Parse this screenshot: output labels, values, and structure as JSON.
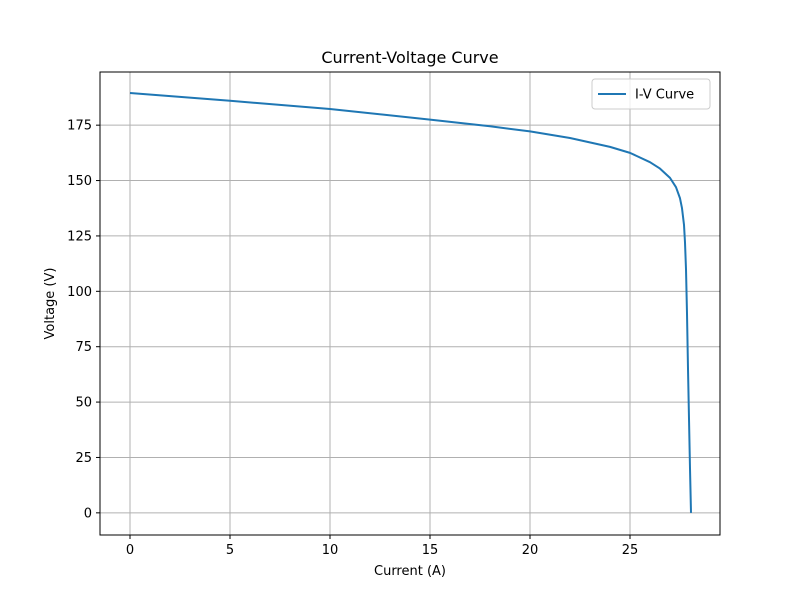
{
  "chart_data": {
    "type": "line",
    "title": "Current-Voltage Curve",
    "xlabel": "Current (A)",
    "ylabel": "Voltage (V)",
    "xlim": [
      -1.5,
      29.5
    ],
    "ylim": [
      -10,
      199
    ],
    "xticks": [
      0,
      5,
      10,
      15,
      20,
      25
    ],
    "yticks": [
      0,
      25,
      50,
      75,
      100,
      125,
      150,
      175
    ],
    "grid": true,
    "legend_position": "upper-right",
    "series": [
      {
        "name": "I-V Curve",
        "color": "#1f77b4",
        "x": [
          0,
          5,
          10,
          15,
          18,
          20,
          22,
          24,
          25,
          26,
          26.5,
          27,
          27.3,
          27.5,
          27.6,
          27.7,
          27.75,
          27.8,
          27.85,
          27.9,
          28.0,
          28.05
        ],
        "y": [
          189.5,
          186.0,
          182.3,
          177.5,
          174.5,
          172.2,
          169.2,
          165.2,
          162.5,
          158.3,
          155.4,
          151.2,
          147.0,
          142.0,
          137.5,
          130.0,
          122.0,
          110.0,
          90.0,
          65.0,
          20.0,
          0.0
        ]
      }
    ]
  }
}
